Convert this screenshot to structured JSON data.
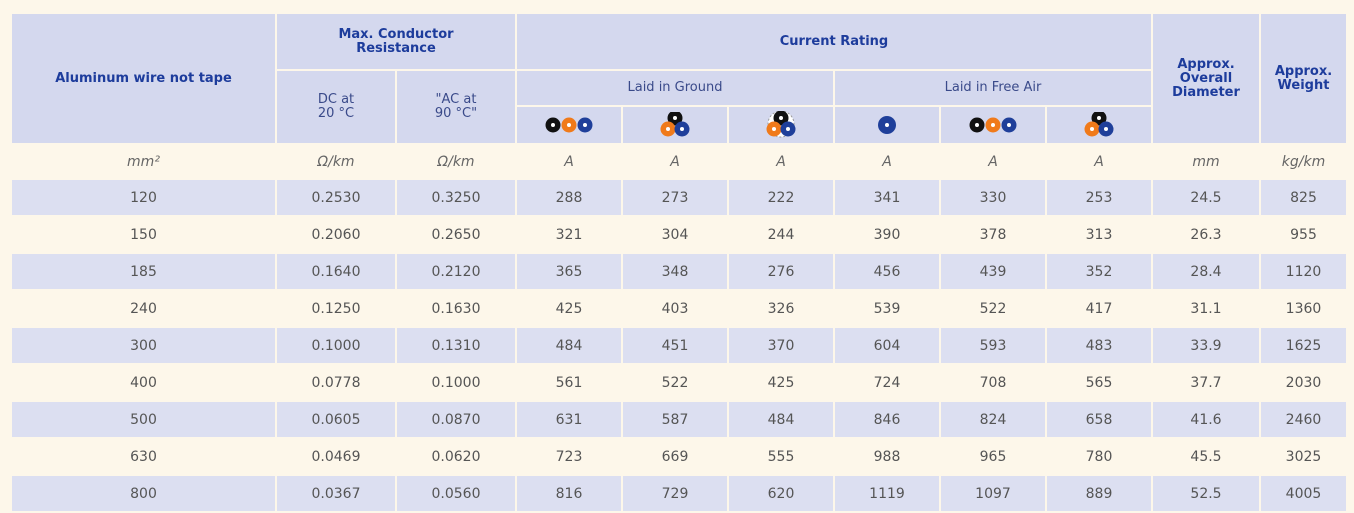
{
  "header": {
    "conductor": "Aluminum wire not tape",
    "resistance": "Max. Conductor Resistance",
    "dc": "DC at 20 °C",
    "ac": "\"AC at 90 °C\"",
    "current": "Current Rating",
    "ground": "Laid in Ground",
    "air": "Laid in Free Air",
    "diameter": "Approx. Overall Diameter",
    "weight": "Approx. Weight"
  },
  "units": [
    "mm²",
    "Ω/km",
    "Ω/km",
    "A",
    "A",
    "A",
    "A",
    "A",
    "A",
    "mm",
    "kg/km"
  ],
  "rows": [
    [
      "120",
      "0.2530",
      "0.3250",
      "288",
      "273",
      "222",
      "341",
      "330",
      "253",
      "24.5",
      "825"
    ],
    [
      "150",
      "0.2060",
      "0.2650",
      "321",
      "304",
      "244",
      "390",
      "378",
      "313",
      "26.3",
      "955"
    ],
    [
      "185",
      "0.1640",
      "0.2120",
      "365",
      "348",
      "276",
      "456",
      "439",
      "352",
      "28.4",
      "1120"
    ],
    [
      "240",
      "0.1250",
      "0.1630",
      "425",
      "403",
      "326",
      "539",
      "522",
      "417",
      "31.1",
      "1360"
    ],
    [
      "300",
      "0.1000",
      "0.1310",
      "484",
      "451",
      "370",
      "604",
      "593",
      "483",
      "33.9",
      "1625"
    ],
    [
      "400",
      "0.0778",
      "0.1000",
      "561",
      "522",
      "425",
      "724",
      "708",
      "565",
      "37.7",
      "2030"
    ],
    [
      "500",
      "0.0605",
      "0.0870",
      "631",
      "587",
      "484",
      "846",
      "824",
      "658",
      "41.6",
      "2460"
    ],
    [
      "630",
      "0.0469",
      "0.0620",
      "723",
      "669",
      "555",
      "988",
      "965",
      "780",
      "45.5",
      "3025"
    ],
    [
      "800",
      "0.0367",
      "0.0560",
      "816",
      "729",
      "620",
      "1119",
      "1097",
      "889",
      "52.5",
      "4005"
    ]
  ]
}
